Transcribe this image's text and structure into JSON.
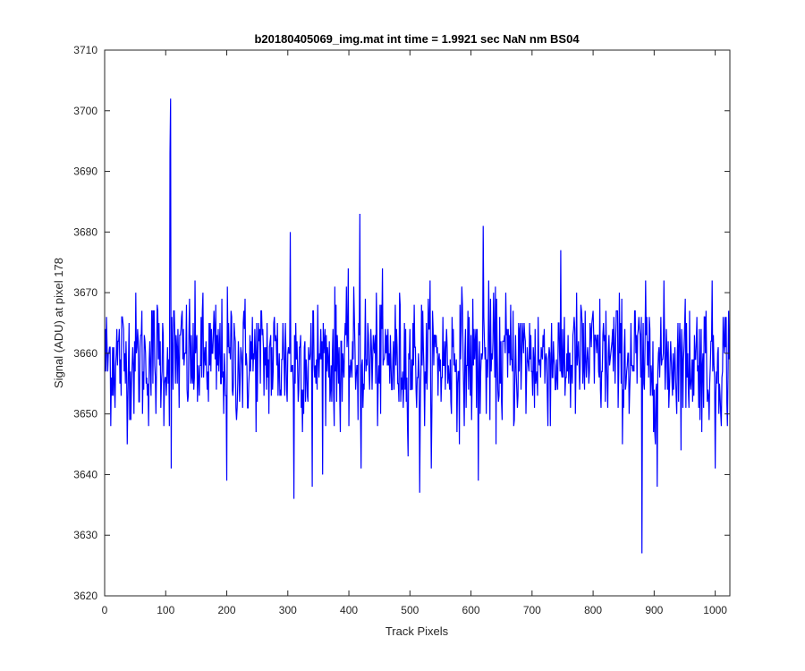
{
  "chart_data": {
    "type": "line",
    "title": "b20180405069_img.mat int time = 1.9921 sec  NaN nm BS04",
    "xlabel": "Track Pixels",
    "ylabel": "Signal (ADU) at pixel 178",
    "xlim": [
      0,
      1024
    ],
    "ylim": [
      3620,
      3710
    ],
    "xticks": [
      0,
      100,
      200,
      300,
      400,
      500,
      600,
      700,
      800,
      900,
      1000
    ],
    "yticks": [
      3620,
      3630,
      3640,
      3650,
      3660,
      3670,
      3680,
      3690,
      3700,
      3710
    ],
    "grid": false,
    "legend": false,
    "noise": {
      "mean": 3659,
      "low": 3645,
      "high": 3673,
      "samples": 1024
    },
    "spikes": [
      {
        "x": 107,
        "y": 3693
      },
      {
        "x": 108,
        "y": 3702
      },
      {
        "x": 109,
        "y": 3641
      },
      {
        "x": 200,
        "y": 3639
      },
      {
        "x": 304,
        "y": 3680
      },
      {
        "x": 310,
        "y": 3636
      },
      {
        "x": 340,
        "y": 3638
      },
      {
        "x": 418,
        "y": 3683
      },
      {
        "x": 420,
        "y": 3641
      },
      {
        "x": 516,
        "y": 3637
      },
      {
        "x": 612,
        "y": 3639
      },
      {
        "x": 620,
        "y": 3681
      },
      {
        "x": 880,
        "y": 3627
      },
      {
        "x": 905,
        "y": 3638
      },
      {
        "x": 1000,
        "y": 3641
      }
    ],
    "series": [
      {
        "color": "#0000ff"
      }
    ]
  }
}
